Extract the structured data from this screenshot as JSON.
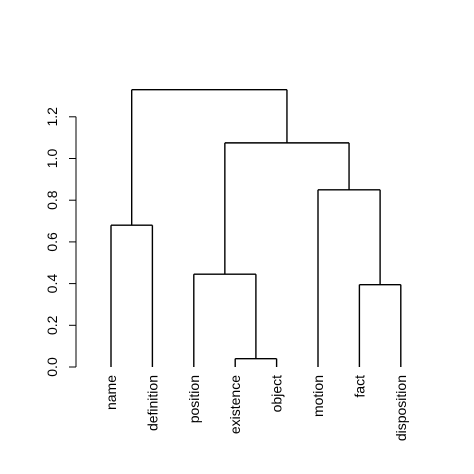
{
  "chart_data": {
    "type": "dendrogram",
    "leaves": [
      "name",
      "definition",
      "position",
      "existence",
      "object",
      "motion",
      "fact",
      "disposition"
    ],
    "yticks": [
      "0.0",
      "0.2",
      "0.4",
      "0.6",
      "0.8",
      "1.0",
      "1.2"
    ],
    "ylim": [
      0,
      1.33
    ],
    "merges": [
      {
        "id": "m1",
        "left": "leaf:3",
        "right": "leaf:4",
        "height": 0.04
      },
      {
        "id": "m2",
        "left": "leaf:6",
        "right": "leaf:7",
        "height": 0.395
      },
      {
        "id": "m3",
        "left": "leaf:2",
        "right": "m1",
        "height": 0.445
      },
      {
        "id": "m4",
        "left": "leaf:0",
        "right": "leaf:1",
        "height": 0.68
      },
      {
        "id": "m5",
        "left": "leaf:5",
        "right": "m2",
        "height": 0.85
      },
      {
        "id": "m6",
        "left": "m3",
        "right": "m5",
        "height": 1.075
      },
      {
        "id": "m7",
        "left": "m4",
        "right": "m6",
        "height": 1.33
      }
    ]
  }
}
